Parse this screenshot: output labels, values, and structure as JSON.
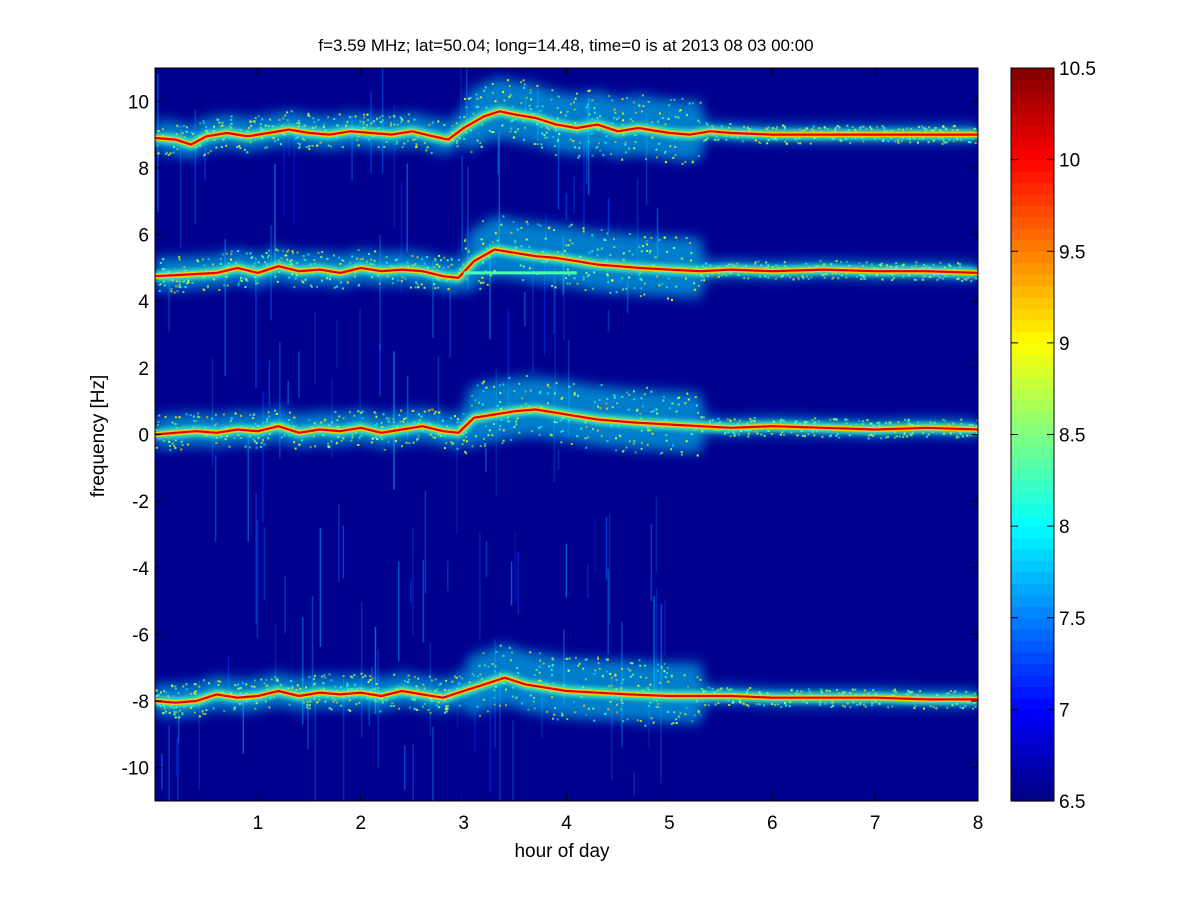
{
  "chart_data": {
    "type": "heatmap",
    "title": "f=3.59 MHz;  lat=50.04; long=14.48, time=0 is at 2013 08 03 00:00",
    "xlabel": "hour of day",
    "ylabel": "frequency [Hz]",
    "xlim": [
      0,
      8
    ],
    "ylim": [
      -11,
      11
    ],
    "xticks": [
      1,
      2,
      3,
      4,
      5,
      6,
      7,
      8
    ],
    "yticks": [
      -10,
      -8,
      -6,
      -4,
      -2,
      0,
      2,
      4,
      6,
      8,
      10
    ],
    "colorbar": {
      "range": [
        6.5,
        10.5
      ],
      "ticks": [
        6.5,
        7,
        7.5,
        8,
        8.5,
        9,
        9.5,
        10,
        10.5
      ],
      "colormap": "jet",
      "levels": 64
    },
    "background_color": "#00008f",
    "traces": [
      {
        "name_hint": "trace-9hz",
        "hours": [
          0,
          0.2,
          0.35,
          0.5,
          0.7,
          0.9,
          1.1,
          1.3,
          1.5,
          1.7,
          1.9,
          2.1,
          2.3,
          2.5,
          2.7,
          2.85,
          3.0,
          3.2,
          3.35,
          3.5,
          3.7,
          3.9,
          4.1,
          4.3,
          4.5,
          4.7,
          5.0,
          5.2,
          5.4,
          5.6,
          6.0,
          6.5,
          7.0,
          7.5,
          8.0
        ],
        "freq": [
          8.9,
          8.85,
          8.7,
          8.95,
          9.05,
          8.95,
          9.05,
          9.15,
          9.05,
          9.0,
          9.1,
          9.05,
          9.0,
          9.1,
          8.95,
          8.85,
          9.2,
          9.55,
          9.7,
          9.6,
          9.5,
          9.3,
          9.2,
          9.3,
          9.1,
          9.2,
          9.05,
          9.0,
          9.1,
          9.05,
          9.0,
          9.0,
          9.0,
          9.0,
          9.0
        ]
      },
      {
        "name_hint": "trace-5hz",
        "hours": [
          0,
          0.3,
          0.6,
          0.8,
          1.0,
          1.2,
          1.4,
          1.6,
          1.8,
          2.0,
          2.2,
          2.4,
          2.6,
          2.8,
          2.95,
          3.1,
          3.3,
          3.5,
          3.7,
          3.9,
          4.1,
          4.3,
          4.5,
          4.7,
          5.0,
          5.3,
          5.6,
          6.0,
          6.5,
          7.0,
          7.5,
          8.0
        ],
        "freq": [
          4.75,
          4.8,
          4.85,
          5.0,
          4.85,
          5.05,
          4.9,
          4.95,
          4.85,
          5.0,
          4.9,
          4.95,
          4.9,
          4.75,
          4.7,
          5.2,
          5.55,
          5.45,
          5.35,
          5.3,
          5.2,
          5.1,
          5.05,
          5.0,
          4.95,
          4.9,
          4.95,
          4.9,
          4.95,
          4.9,
          4.9,
          4.85
        ]
      },
      {
        "name_hint": "trace-0hz",
        "hours": [
          0,
          0.2,
          0.4,
          0.6,
          0.8,
          1.0,
          1.2,
          1.4,
          1.6,
          1.8,
          2.0,
          2.2,
          2.4,
          2.6,
          2.8,
          2.95,
          3.1,
          3.3,
          3.5,
          3.7,
          3.9,
          4.1,
          4.3,
          4.5,
          4.7,
          5.0,
          5.3,
          5.6,
          6.0,
          6.5,
          7.0,
          7.5,
          8.0
        ],
        "freq": [
          0.0,
          0.05,
          0.1,
          0.05,
          0.15,
          0.1,
          0.25,
          0.05,
          0.15,
          0.1,
          0.2,
          0.05,
          0.15,
          0.25,
          0.1,
          0.05,
          0.5,
          0.6,
          0.7,
          0.75,
          0.65,
          0.55,
          0.45,
          0.4,
          0.35,
          0.3,
          0.25,
          0.2,
          0.25,
          0.2,
          0.15,
          0.2,
          0.15
        ]
      },
      {
        "name_hint": "trace-minus8hz",
        "hours": [
          0,
          0.2,
          0.4,
          0.6,
          0.8,
          1.0,
          1.2,
          1.4,
          1.6,
          1.8,
          2.0,
          2.2,
          2.4,
          2.6,
          2.8,
          3.0,
          3.2,
          3.4,
          3.6,
          3.8,
          4.0,
          4.3,
          4.6,
          5.0,
          5.3,
          5.6,
          6.0,
          6.5,
          7.0,
          7.5,
          8.0
        ],
        "freq": [
          -8.0,
          -8.05,
          -8.0,
          -7.8,
          -7.9,
          -7.85,
          -7.7,
          -7.85,
          -7.75,
          -7.8,
          -7.75,
          -7.85,
          -7.7,
          -7.8,
          -7.9,
          -7.7,
          -7.5,
          -7.3,
          -7.5,
          -7.6,
          -7.7,
          -7.75,
          -7.8,
          -7.85,
          -7.85,
          -7.85,
          -7.9,
          -7.9,
          -7.9,
          -7.95,
          -7.95
        ]
      }
    ],
    "horizontal_artifact": {
      "freq": 4.85,
      "hours": [
        3.0,
        4.1
      ]
    }
  }
}
